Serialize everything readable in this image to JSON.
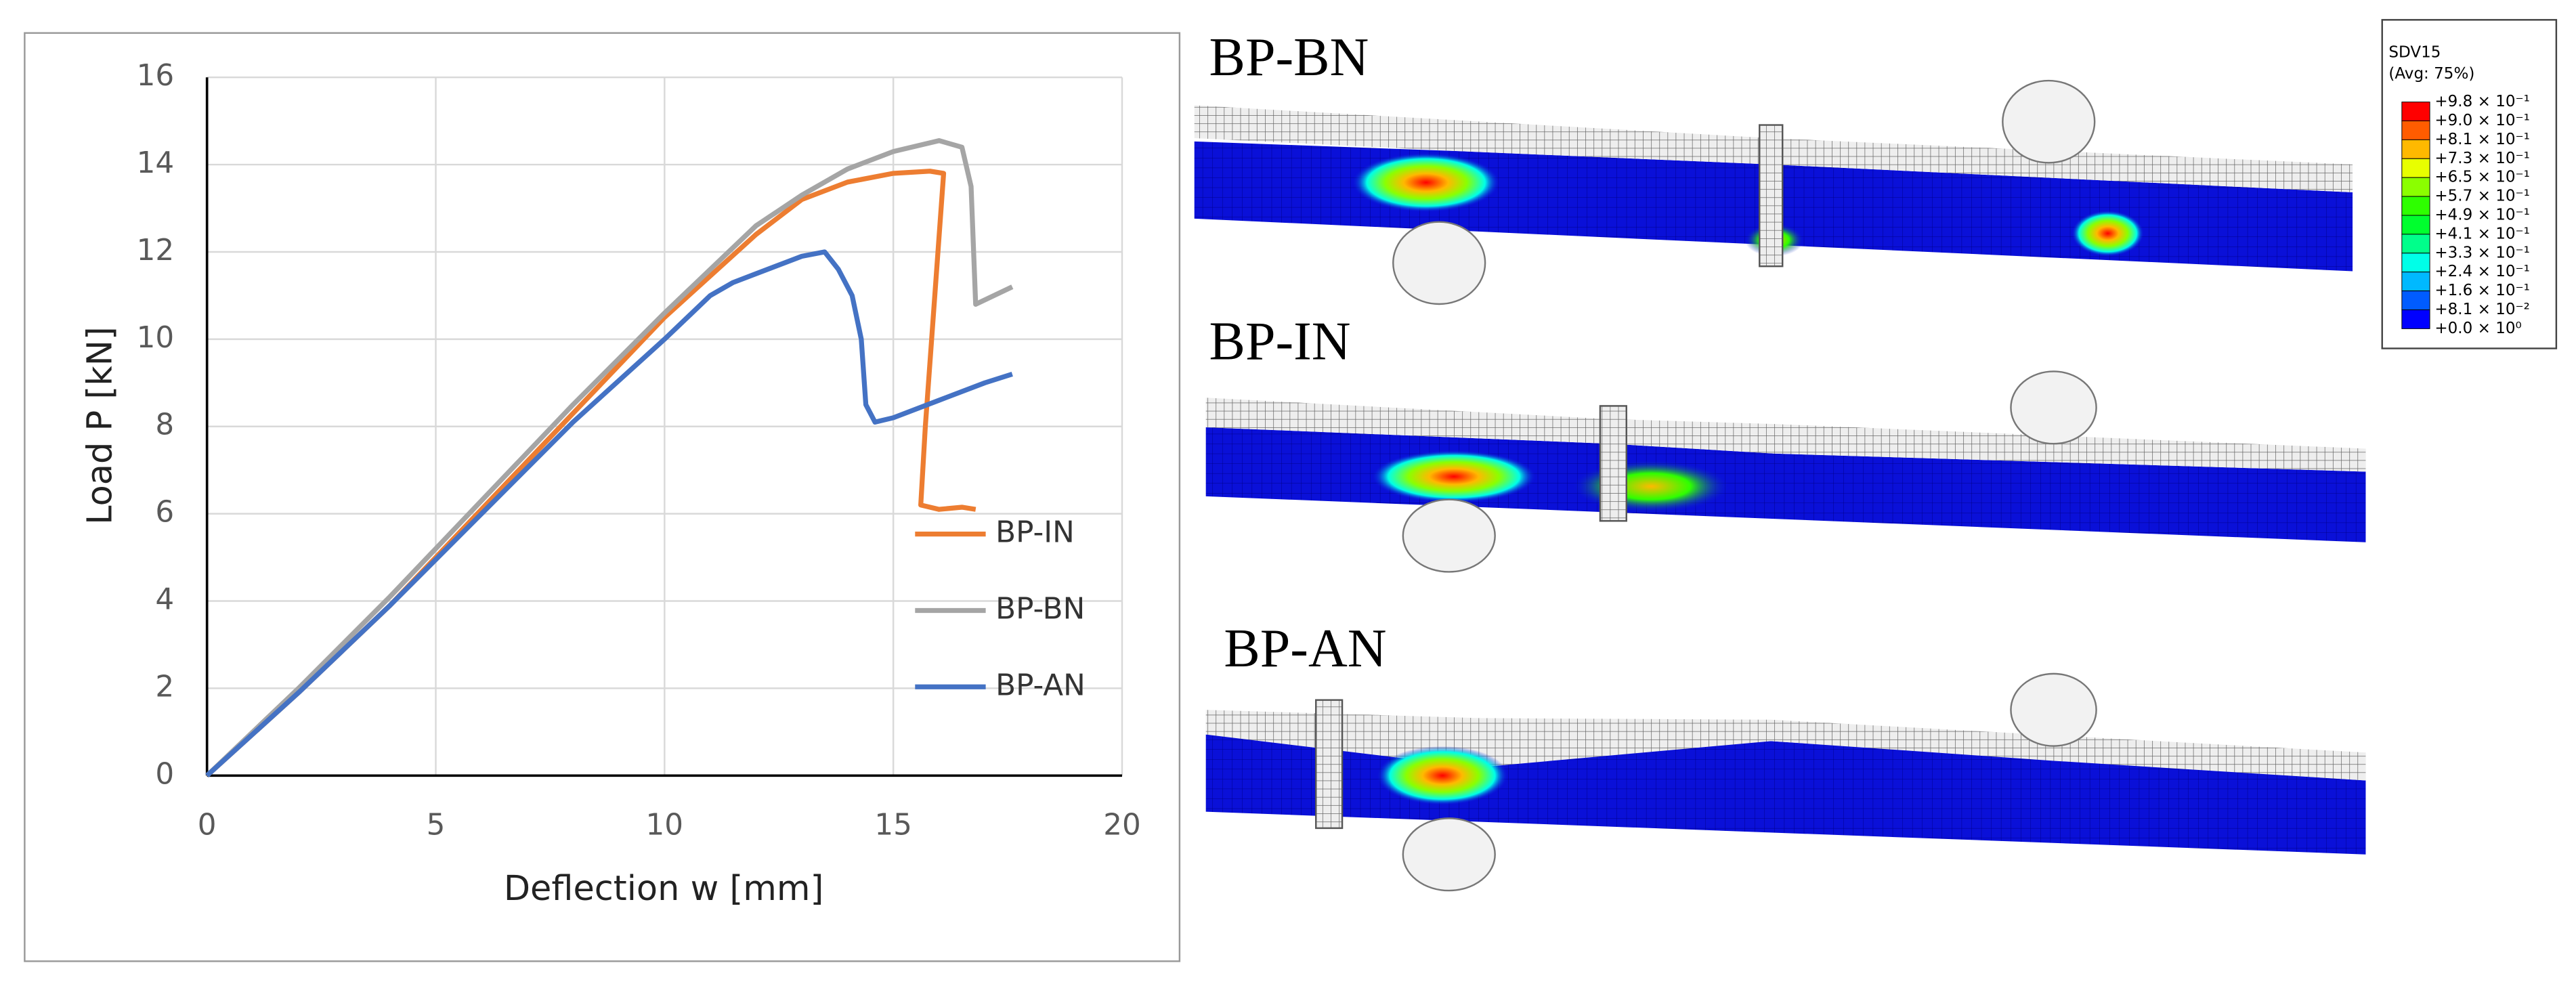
{
  "chart_data": {
    "type": "line",
    "xlabel": "Deflection w [mm]",
    "ylabel": "Load P [kN]",
    "xlim": [
      0,
      20
    ],
    "xticks": [
      0,
      5,
      10,
      15,
      20
    ],
    "ylim": [
      0,
      16
    ],
    "yticks": [
      0,
      2,
      4,
      6,
      8,
      10,
      12,
      14,
      16
    ],
    "grid": true,
    "series": [
      {
        "name": "BP-IN",
        "color": "#ed7d31",
        "x": [
          0,
          2,
          4,
          6,
          8,
          10,
          12,
          13,
          14,
          15,
          15.8,
          16.1,
          15.7,
          15.6,
          16,
          16.5,
          16.8
        ],
        "values": [
          0,
          1.9,
          3.9,
          6.1,
          8.3,
          10.5,
          12.4,
          13.2,
          13.6,
          13.8,
          13.85,
          13.8,
          8,
          6.2,
          6.1,
          6.15,
          6.1
        ]
      },
      {
        "name": "BP-BN",
        "color": "#a5a5a5",
        "x": [
          0,
          2,
          4,
          6,
          8,
          10,
          12,
          13,
          14,
          15,
          16,
          16.5,
          16.7,
          16.8,
          17.2,
          17.6
        ],
        "values": [
          0,
          2,
          4.1,
          6.3,
          8.5,
          10.6,
          12.6,
          13.3,
          13.9,
          14.3,
          14.55,
          14.4,
          13.5,
          10.8,
          11,
          11.2
        ]
      },
      {
        "name": "BP-AN",
        "color": "#4472c4",
        "x": [
          0,
          2,
          4,
          6,
          8,
          10,
          11,
          11.5,
          12,
          13,
          13.5,
          13.8,
          14.1,
          14.3,
          14.4,
          14.6,
          15,
          16,
          17,
          17.6
        ],
        "values": [
          0,
          1.9,
          3.9,
          6,
          8.1,
          10,
          11,
          11.3,
          11.5,
          11.9,
          12,
          11.6,
          11,
          10,
          8.5,
          8.1,
          8.2,
          8.6,
          9,
          9.2
        ]
      }
    ]
  },
  "panels": [
    {
      "label": "BP-BN"
    },
    {
      "label": "BP-IN"
    },
    {
      "label": "BP-AN"
    }
  ],
  "contour_legend": {
    "title": "SDV15",
    "subtitle": "(Avg: 75%)",
    "labels": [
      "+9.8 × 10⁻¹",
      "+9.0 × 10⁻¹",
      "+8.1 × 10⁻¹",
      "+7.3 × 10⁻¹",
      "+6.5 × 10⁻¹",
      "+5.7 × 10⁻¹",
      "+4.9 × 10⁻¹",
      "+4.1 × 10⁻¹",
      "+3.3 × 10⁻¹",
      "+2.4 × 10⁻¹",
      "+1.6 × 10⁻¹",
      "+8.1 × 10⁻²",
      "+0.0 × 10⁰"
    ],
    "colors": [
      "#ff0000",
      "#ff5c00",
      "#ffb900",
      "#e8ff00",
      "#8bff00",
      "#2eff00",
      "#00ff2e",
      "#00ff8b",
      "#00ffe8",
      "#00b9ff",
      "#005cff",
      "#0000ff"
    ]
  }
}
